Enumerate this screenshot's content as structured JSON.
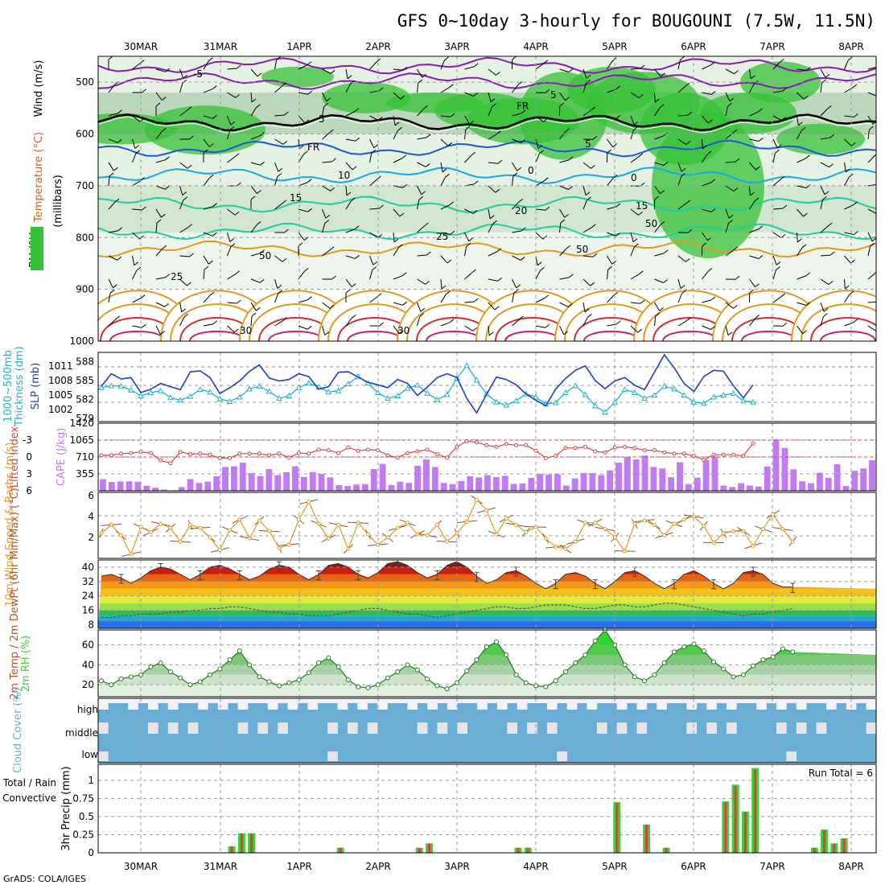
{
  "title": "GFS 0~10day 3-hourly for BOUGOUNI (7.5W, 11.5N)",
  "footer": "GrADS: COLA/IGES",
  "run_total": "Run Total = 6",
  "colors": {
    "rh_green": "#36c236",
    "rh_light": "#e6f2e4",
    "rh_mid": "#bcd8bc",
    "temp_purple": "#8a1ab4",
    "temp_blue": "#1f56d6",
    "temp_cyan": "#1aa7e6",
    "temp_teal": "#1dcf9e",
    "temp_orange": "#e09a1e",
    "temp_red": "#d92b2b",
    "thickness": "#1fb3c9",
    "slp": "#1e3fcf",
    "lifted": "#d64545",
    "cape": "#c27af5",
    "wind": "#e8961e",
    "cloud": "#6aaed6",
    "rain": "#3ecf3e",
    "conv": "#e83a3a"
  },
  "chart_data": {
    "type": "meteogram",
    "days": [
      "30MAR",
      "31MAR",
      "1APR",
      "2APR",
      "3APR",
      "4APR",
      "5APR",
      "6APR",
      "7APR",
      "8APR"
    ],
    "panels": {
      "upper_air": {
        "ylabel_wind": "Wind (m/s)",
        "ylabel_temp": "Temperature (°C)",
        "ylabel_rh": "RH (%)",
        "ylabel_units": "(millibars)",
        "yticks": [
          "500",
          "600",
          "700",
          "800",
          "900",
          "1000"
        ],
        "contour_labels": [
          "-5",
          "5",
          "5",
          "FR",
          "FR",
          "5",
          "10",
          "0",
          "15",
          "20",
          "15",
          "25",
          "25",
          "30",
          "30",
          "50",
          "50",
          "50",
          "0"
        ],
        "isotherms": [
          {
            "value": "-5",
            "base_mb": 468,
            "color": "temp_purple"
          },
          {
            "value": "-5",
            "base_mb": 498,
            "color": "temp_purple"
          },
          {
            "value": "FR",
            "base_mb": 578,
            "color": "frz"
          },
          {
            "value": "5",
            "base_mb": 628,
            "color": "temp_blue"
          },
          {
            "value": "10",
            "base_mb": 680,
            "color": "temp_cyan"
          },
          {
            "value": "15",
            "base_mb": 736,
            "color": "temp_teal"
          },
          {
            "value": "20",
            "base_mb": 788,
            "color": "temp_teal"
          },
          {
            "value": "25",
            "base_mb": 822,
            "color": "temp_orange"
          }
        ]
      },
      "thickness_slp": {
        "ylabel_left": "Thickness (dm)",
        "ylabel_left2": "1000~500mb",
        "ylabel_right": "SLP (mb)",
        "yticks_left": [
          "579",
          "582",
          "585",
          "588"
        ],
        "yticks_right": [
          "1002",
          "1005",
          "1008",
          "1011"
        ],
        "thickness": [
          583.9,
          584.2,
          584.1,
          583.5,
          582.6,
          583.1,
          583.4,
          582.3,
          581.9,
          582.5,
          583.6,
          583.2,
          582.1,
          581.7,
          582.4,
          583.7,
          584.1,
          583.3,
          582.2,
          582.6,
          583.9,
          584.6,
          584.0,
          583.2,
          583.4,
          584.5,
          585.7,
          584.6,
          583.1,
          582.2,
          582.6,
          583.8,
          584.3,
          583.0,
          582.0,
          582.8,
          585.4,
          587.4,
          585.1,
          582.9,
          581.6,
          581.1,
          581.8,
          582.9,
          582.4,
          581.3,
          581.5,
          583.1,
          584.2,
          582.8,
          581.0,
          580.0,
          581.6,
          583.6,
          583.1,
          582.2,
          582.7,
          584.1,
          583.7,
          582.7,
          581.6,
          581.4,
          582.4,
          582.7,
          583.0,
          581.8,
          581.6
        ],
        "slp": [
          1006.8,
          1009.4,
          1008.3,
          1008.6,
          1005.5,
          1006.2,
          1007.4,
          1006.7,
          1006.1,
          1009.8,
          1010.0,
          1008.6,
          1005.3,
          1006.5,
          1007.9,
          1009.9,
          1011.2,
          1008.5,
          1007.9,
          1008.2,
          1009.4,
          1008.8,
          1006.2,
          1006.7,
          1009.7,
          1009.8,
          1008.7,
          1007.6,
          1007.1,
          1006.5,
          1008.2,
          1007.4,
          1004.9,
          1006.6,
          1008.6,
          1009.4,
          1008.6,
          1004.3,
          1001.3,
          1005.1,
          1008.7,
          1008.2,
          1007.1,
          1005.2,
          1003.9,
          1002.8,
          1006.2,
          1008.4,
          1010.1,
          1011.0,
          1008.0,
          1006.3,
          1007.9,
          1008.6,
          1007.0,
          1006.1,
          1009.7,
          1013.3,
          1010.6,
          1007.4,
          1005.7,
          1008.8,
          1010.1,
          1009.9,
          1006.9,
          1004.4,
          1007.1
        ]
      },
      "cape_li": {
        "ylabel_left": "Lifted Index",
        "ylabel_right": "CAPE (J/kg)",
        "yticks_left": [
          "-3",
          "0",
          "3",
          "6"
        ],
        "yticks_right": [
          "355",
          "710",
          "1065",
          "1420"
        ],
        "lifted_index": [
          -0.3,
          -0.3,
          -0.6,
          -0.7,
          -0.9,
          -0.7,
          0.6,
          1.1,
          -0.9,
          -0.5,
          -0.6,
          -0.4,
          0.2,
          0.2,
          -0.6,
          -0.6,
          -0.6,
          -0.3,
          -0.6,
          0.1,
          -0.7,
          -0.6,
          -1.3,
          -1.2,
          -0.7,
          -1.7,
          -1.1,
          -1.3,
          -1.2,
          -0.3,
          0.1,
          -0.7,
          -1.0,
          -1.3,
          -0.5,
          0.1,
          -1.8,
          -2.8,
          -2.6,
          -2.1,
          -1.8,
          -2.3,
          -2.1,
          -2.1,
          -1.1,
          0.2,
          -0.2,
          -1.6,
          -1.6,
          -1.8,
          -1.0,
          -0.8,
          -1.7,
          -1.8,
          -1.6,
          -1.2,
          -1.2,
          -0.8,
          -0.6,
          -0.6,
          -0.2,
          0.5,
          -0.4,
          -0.4,
          -0.4,
          -0.2,
          -2.4
        ],
        "cape": [
          245,
          185,
          195,
          200,
          190,
          105,
          65,
          25,
          10,
          80,
          245,
          165,
          190,
          305,
          500,
          515,
          590,
          370,
          310,
          455,
          330,
          390,
          515,
          290,
          395,
          355,
          280,
          120,
          100,
          130,
          140,
          455,
          565,
          120,
          190,
          165,
          525,
          660,
          500,
          165,
          140,
          205,
          305,
          280,
          330,
          290,
          315,
          145,
          155,
          270,
          355,
          340,
          350,
          110,
          260,
          375,
          370,
          330,
          430,
          590,
          700,
          660,
          740,
          500,
          470,
          285,
          600
        ],
        "cape_extra": [
          140,
          275,
          650,
          720,
          110,
          80,
          160,
          110,
          90,
          510,
          1080,
          900,
          450,
          200,
          160,
          380,
          270,
          560,
          100,
          420,
          470,
          640
        ]
      },
      "wind10m": {
        "ylabel": "10m Wind Speed & Barbs (m/s)",
        "yticks": [
          "2",
          "4",
          "6"
        ],
        "speed": [
          2.4,
          3.2,
          2.2,
          0.4,
          3.0,
          2.5,
          3.3,
          2.9,
          1.6,
          3.2,
          2.9,
          2.0,
          0.8,
          2.7,
          3.7,
          1.9,
          3.6,
          2.6,
          1.0,
          1.3,
          3.7,
          5.4,
          3.3,
          1.9,
          3.2,
          0.9,
          3.4,
          2.3,
          1.3,
          2.0,
          2.9,
          3.4,
          2.3,
          2.2,
          3.2,
          1.6,
          2.4,
          3.5,
          5.6,
          4.6,
          2.3,
          3.8,
          3.2,
          2.5,
          3.0,
          1.9,
          1.1,
          0.9,
          1.6,
          3.4,
          3.4,
          2.8,
          2.0,
          0.7,
          3.3,
          3.6,
          3.2,
          2.2,
          3.3,
          3.7,
          4.0,
          3.1,
          1.5,
          2.4,
          2.6,
          2.6,
          1.2,
          2.8,
          4.2,
          2.8,
          1.6
        ]
      },
      "temp2m": {
        "ylabel": "2m Temp / 2m DewPt (6hr Min/Max) (°C)",
        "yticks": [
          "8",
          "16",
          "24",
          "32",
          "40"
        ],
        "temp": [
          35,
          36,
          34,
          31,
          34,
          38,
          40,
          39,
          36,
          33,
          36,
          40,
          41,
          39,
          36,
          33,
          35,
          39,
          41,
          40,
          36,
          33,
          36,
          41,
          42,
          40,
          36,
          34,
          37,
          42,
          43,
          41,
          37,
          34,
          36,
          41,
          43,
          40,
          35,
          31,
          33,
          37,
          38,
          35,
          31,
          28,
          31,
          36,
          37,
          35,
          31,
          28,
          32,
          37,
          38,
          35,
          31,
          28,
          31,
          36,
          38,
          35,
          31,
          28,
          31,
          37,
          38,
          36,
          31,
          29,
          29
        ],
        "dewpt": [
          12,
          12,
          13,
          13,
          14,
          14,
          14,
          15,
          15,
          16,
          16,
          17,
          17,
          18,
          18,
          17,
          16,
          15,
          15,
          14,
          14,
          13,
          13,
          13,
          14,
          15,
          16,
          17,
          17,
          16,
          15,
          14,
          14,
          13,
          12,
          13,
          14,
          15,
          16,
          17,
          18,
          18,
          17,
          17,
          18,
          19,
          19,
          19,
          18,
          17,
          17,
          18,
          19,
          19,
          18,
          18,
          19,
          20,
          20,
          19,
          18,
          17,
          16,
          15,
          14,
          13,
          14,
          14,
          15,
          16,
          17
        ]
      },
      "rh2m": {
        "ylabel": "2m RH (%)",
        "yticks": [
          "20",
          "40",
          "60"
        ],
        "rh": [
          24,
          20,
          26,
          28,
          30,
          38,
          42,
          33,
          27,
          20,
          23,
          30,
          36,
          45,
          54,
          40,
          28,
          23,
          19,
          22,
          25,
          32,
          42,
          47,
          38,
          25,
          18,
          17,
          20,
          27,
          33,
          40,
          35,
          26,
          19,
          16,
          22,
          34,
          45,
          58,
          63,
          50,
          30,
          22,
          19,
          18,
          24,
          33,
          42,
          50,
          64,
          75,
          60,
          40,
          28,
          24,
          30,
          42,
          53,
          58,
          61,
          54,
          43,
          36,
          28,
          30,
          39,
          45,
          48,
          56,
          53
        ]
      },
      "cloud": {
        "ylabel": "Cloud Cover (%)",
        "levels": [
          "high",
          "middle",
          "low"
        ]
      },
      "precip": {
        "ylabel": "3hr Precip (mm)",
        "ylabel_total": "Total / Rain",
        "ylabel_conv": "Convective",
        "yticks": [
          "0",
          "0.25",
          "0.5",
          "0.75",
          "1"
        ],
        "bars": [
          {
            "t": 13,
            "total": 0.09
          },
          {
            "t": 14,
            "total": 0.27
          },
          {
            "t": 15,
            "total": 0.27
          },
          {
            "t": 24,
            "total": 0.07
          },
          {
            "t": 32,
            "total": 0.07
          },
          {
            "t": 33,
            "total": 0.13
          },
          {
            "t": 42,
            "total": 0.07
          },
          {
            "t": 43,
            "total": 0.07
          },
          {
            "t": 52,
            "total": 0.7
          },
          {
            "t": 55,
            "total": 0.39
          },
          {
            "t": 57,
            "total": 0.07
          },
          {
            "t": 63,
            "total": 0.71
          },
          {
            "t": 64,
            "total": 0.94
          },
          {
            "t": 65,
            "total": 0.57
          },
          {
            "t": 66,
            "total": 1.17
          },
          {
            "t": 72,
            "total": 0.07
          },
          {
            "t": 73,
            "total": 0.32
          },
          {
            "t": 74,
            "total": 0.13
          },
          {
            "t": 75,
            "total": 0.2
          }
        ]
      }
    }
  }
}
